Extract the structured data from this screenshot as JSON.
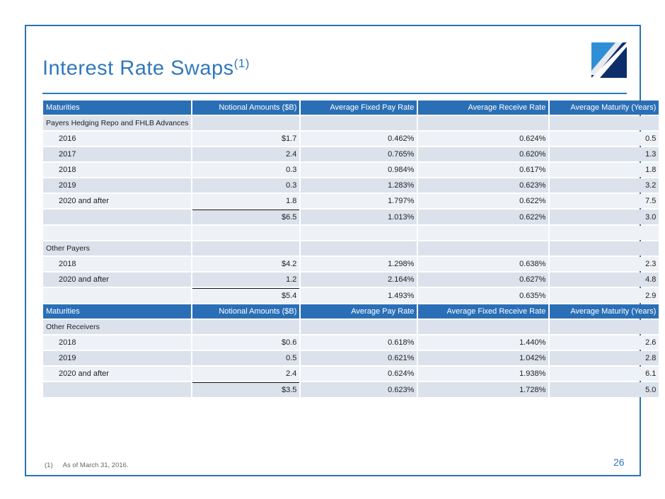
{
  "header": {
    "title": "Interest Rate Swaps",
    "title_note": "(1)"
  },
  "tables": [
    {
      "header": [
        "Maturities",
        "Notional Amounts ($B)",
        "Average Fixed Pay Rate",
        "Average Receive Rate",
        "Average Maturity (Years)"
      ],
      "groups": [
        {
          "label": "Payers Hedging Repo and FHLB Advances",
          "rows": [
            [
              "2016",
              "$1.7",
              "0.462%",
              "0.624%",
              "0.5"
            ],
            [
              "2017",
              "2.4",
              "0.765%",
              "0.620%",
              "1.3"
            ],
            [
              "2018",
              "0.3",
              "0.984%",
              "0.617%",
              "1.8"
            ],
            [
              "2019",
              "0.3",
              "1.283%",
              "0.623%",
              "3.2"
            ],
            [
              "2020 and after",
              "1.8",
              "1.797%",
              "0.622%",
              "7.5"
            ]
          ],
          "total": [
            "$6.5",
            "1.013%",
            "0.622%",
            "3.0"
          ]
        },
        {
          "label": "Other Payers",
          "rows": [
            [
              "2018",
              "$4.2",
              "1.298%",
              "0.638%",
              "2.3"
            ],
            [
              "2020 and after",
              "1.2",
              "2.164%",
              "0.627%",
              "4.8"
            ]
          ],
          "total": [
            "$5.4",
            "1.493%",
            "0.635%",
            "2.9"
          ]
        }
      ]
    },
    {
      "header": [
        "Maturities",
        "Notional Amounts ($B)",
        "Average Pay Rate",
        "Average Fixed Receive Rate",
        "Average Maturity (Years)"
      ],
      "groups": [
        {
          "label": "Other Receivers",
          "rows": [
            [
              "2018",
              "$0.6",
              "0.618%",
              "1.440%",
              "2.6"
            ],
            [
              "2019",
              "0.5",
              "0.621%",
              "1.042%",
              "2.8"
            ],
            [
              "2020 and after",
              "2.4",
              "0.624%",
              "1.938%",
              "6.1"
            ]
          ],
          "total": [
            "$3.5",
            "0.623%",
            "1.728%",
            "5.0"
          ]
        }
      ]
    }
  ],
  "footnote": {
    "marker": "(1)",
    "text": "As of March 31, 2016."
  },
  "page_number": "26"
}
